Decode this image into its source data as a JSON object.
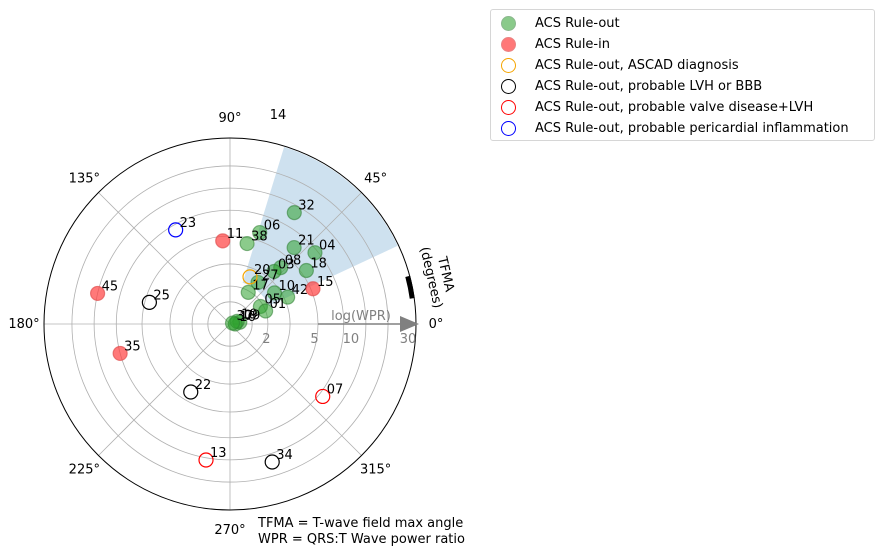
{
  "notes": {
    "line1": "TFMA = T-wave field max angle",
    "line2": "WPR = QRS:T Wave power ratio"
  },
  "chart_data": {
    "type": "scatter",
    "projection": "polar",
    "angle_axis": {
      "label": "TFMA\n(degrees)",
      "ticks": [
        "0°",
        "45°",
        "90°",
        "135°",
        "180°",
        "225°",
        "270°",
        "315°"
      ],
      "tick_values": [
        0,
        45,
        90,
        135,
        180,
        225,
        270,
        315
      ],
      "highlight_wedge_deg": [
        25,
        73
      ],
      "wedge_label": "14"
    },
    "radial_axis": {
      "label": "log(WPR)",
      "scale": "log",
      "tick_labels": [
        "2",
        "5",
        "10",
        "30"
      ],
      "tick_values": [
        2,
        5,
        10,
        30
      ],
      "range": [
        1,
        30
      ]
    },
    "series": [
      {
        "name": "ACS Rule-out",
        "fill": "#2ca02c",
        "edge": "#2e7d32",
        "filled": true,
        "alpha": 0.55,
        "points": [
          {
            "id": "32",
            "angle": 60,
            "r": 10.5
          },
          {
            "id": "06",
            "angle": 72,
            "r": 5.8
          },
          {
            "id": "38",
            "angle": 78,
            "r": 4.5
          },
          {
            "id": "21",
            "angle": 50,
            "r": 6.2
          },
          {
            "id": "04",
            "angle": 40,
            "r": 7.6
          },
          {
            "id": "08",
            "angle": 48,
            "r": 4.0
          },
          {
            "id": "03",
            "angle": 50,
            "r": 3.5
          },
          {
            "id": "18",
            "angle": 35,
            "r": 5.5
          },
          {
            "id": "27",
            "angle": 56,
            "r": 2.5
          },
          {
            "id": "10",
            "angle": 35,
            "r": 2.7
          },
          {
            "id": "42",
            "angle": 25,
            "r": 3.2
          },
          {
            "id": "17",
            "angle": 60,
            "r": 1.95
          },
          {
            "id": "05",
            "angle": 30,
            "r": 1.9
          },
          {
            "id": "01",
            "angle": 20,
            "r": 2.0
          },
          {
            "id": "09",
            "angle": 10,
            "r": 1.2
          },
          {
            "id": "19",
            "angle": 20,
            "r": 1.15
          },
          {
            "id": "16",
            "angle": 0,
            "r": 1.1
          },
          {
            "id": "37",
            "angle": 20,
            "r": 1.05
          }
        ]
      },
      {
        "name": "ACS Rule-in",
        "fill": "#ff4040",
        "edge": "#e05050",
        "filled": true,
        "alpha": 0.7,
        "points": [
          {
            "id": "11",
            "angle": 95,
            "r": 4.6
          },
          {
            "id": "15",
            "angle": 23,
            "r": 5.2
          },
          {
            "id": "45",
            "angle": 167,
            "r": 12
          },
          {
            "id": "35",
            "angle": 195,
            "r": 8
          }
        ]
      },
      {
        "name": "ACS Rule-out, ASCAD diagnosis",
        "fill": "none",
        "edge": "#f5a500",
        "filled": false,
        "points": [
          {
            "id": "20",
            "angle": 67,
            "r": 2.55
          }
        ]
      },
      {
        "name": "ACS Rule-out, probable LVH or BBB",
        "fill": "none",
        "edge": "#000000",
        "filled": false,
        "points": [
          {
            "id": "25",
            "angle": 165,
            "r": 4.6
          },
          {
            "id": "22",
            "angle": 240,
            "r": 4.2
          },
          {
            "id": "34",
            "angle": 287,
            "r": 14
          }
        ]
      },
      {
        "name": "ACS Rule-out, probable valve disease+LVH",
        "fill": "none",
        "edge": "#ff0000",
        "filled": false,
        "points": [
          {
            "id": "07",
            "angle": 322,
            "r": 8.6
          },
          {
            "id": "13",
            "angle": 260,
            "r": 12.5
          }
        ]
      },
      {
        "name": "ACS Rule-out, probable pericardial inflammation",
        "fill": "none",
        "edge": "#0000ff",
        "filled": false,
        "points": [
          {
            "id": "23",
            "angle": 120,
            "r": 7.3
          }
        ]
      }
    ]
  }
}
